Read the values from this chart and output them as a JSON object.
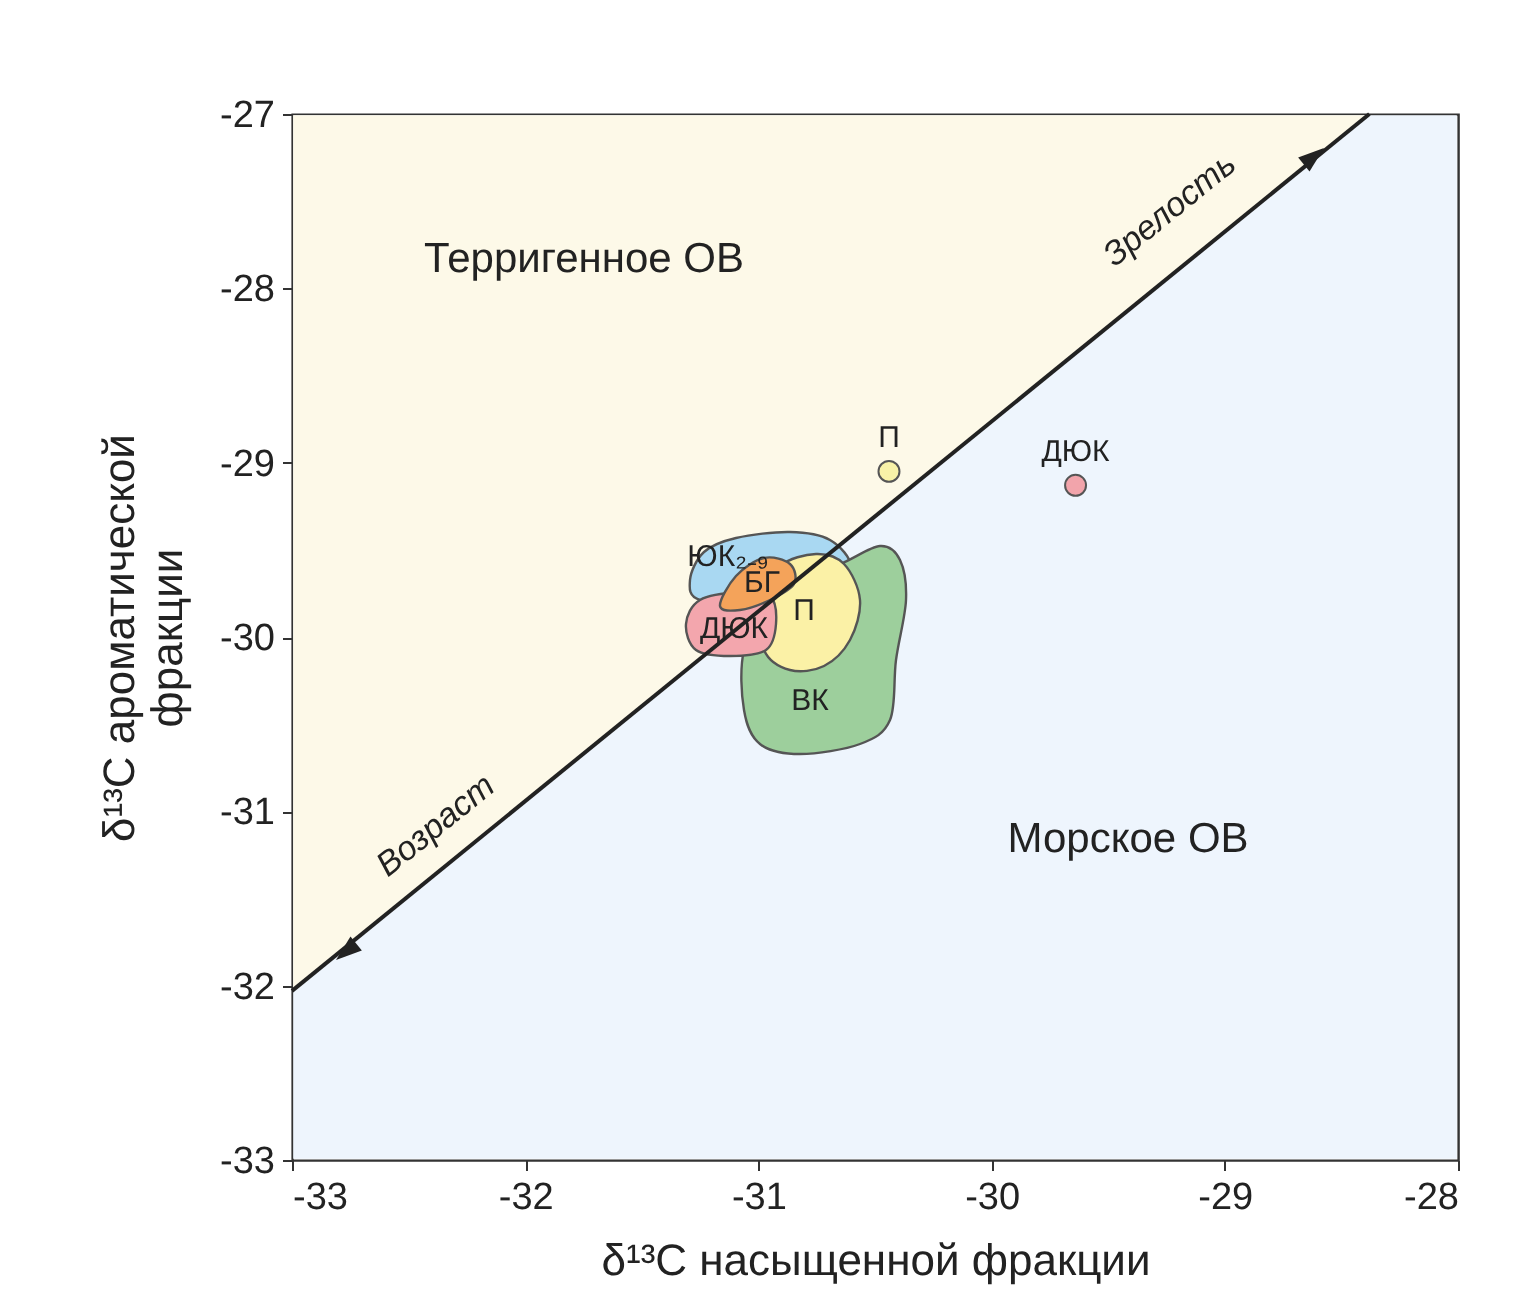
{
  "chart_data": {
    "type": "scatter",
    "xlabel": "δ¹³C насыщенной фракции",
    "ylabel": "δ¹³C ароматической фракции",
    "xlim": [
      -33,
      -28
    ],
    "ylim": [
      -33,
      -27
    ],
    "xticks": [
      -33,
      -32,
      -31,
      -30,
      -29,
      -28
    ],
    "yticks": [
      -33,
      -32,
      -31,
      -30,
      -29,
      -28,
      -27
    ],
    "grid": false,
    "series": [
      {
        "type": "line",
        "color": "#222222",
        "x": [
          -33,
          -28.38
        ],
        "values": [
          -32.03,
          -27
        ]
      },
      {
        "name": "П",
        "color": "#f8f2a8",
        "marker": "circle",
        "x": [
          -30.44
        ],
        "values": [
          -29.05
        ]
      },
      {
        "name": "ДЮК",
        "color": "#f2a4ab",
        "marker": "circle",
        "x": [
          -29.64
        ],
        "values": [
          -29.13
        ]
      }
    ],
    "annotations": [
      "Терригенное ОВ",
      "Морское ОВ",
      "Зрелость",
      "Возраст",
      "ЮК₂₋₉",
      "БГ",
      "ДЮК",
      "П",
      "ВК"
    ]
  }
}
